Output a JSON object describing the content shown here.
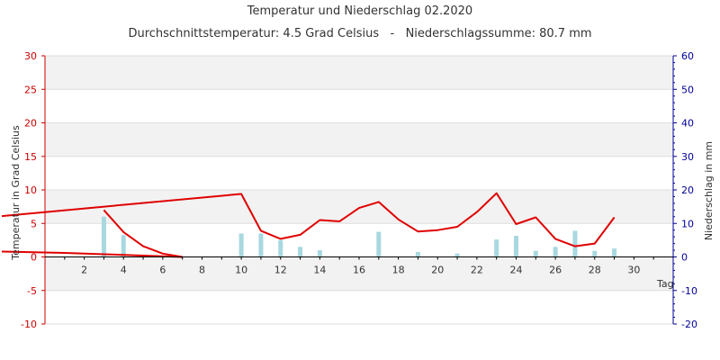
{
  "chart_data": {
    "type": "line",
    "title": "Temperatur und Niederschlag 02.2020",
    "subtitle": "Durchschnittstemperatur: 4.5 Grad Celsius   -   Niederschlagssumme: 80.7 mm",
    "ylabel_left": "Temperatur in Grad Celsius",
    "ylabel_right": "Niederschlag in mm",
    "xlabel": "Tag",
    "xlim": [
      0,
      32
    ],
    "ylim_left": [
      -10,
      30
    ],
    "ylim_right": [
      -20,
      60
    ],
    "x_ticks": [
      2,
      4,
      6,
      8,
      10,
      12,
      14,
      16,
      18,
      20,
      22,
      24,
      26,
      28,
      30
    ],
    "y_ticks_left": [
      -10,
      -5,
      0,
      5,
      10,
      15,
      20,
      25,
      30
    ],
    "y_ticks_right": [
      -20,
      -10,
      0,
      10,
      20,
      30,
      40,
      50,
      60
    ],
    "grid": true,
    "series": [
      {
        "kind": "line",
        "axis": "left",
        "color": "#e00000",
        "values": [
          {
            "x": -2.2,
            "y": 6.1
          },
          {
            "x": 10,
            "y": 9.4
          },
          {
            "x": 11,
            "y": 3.9
          },
          {
            "x": 12,
            "y": 2.7
          },
          {
            "x": 13,
            "y": 3.3
          },
          {
            "x": 14,
            "y": 5.5
          },
          {
            "x": 15,
            "y": 5.3
          },
          {
            "x": 16,
            "y": 7.3
          },
          {
            "x": 17,
            "y": 8.2
          },
          {
            "x": 18,
            "y": 5.6
          },
          {
            "x": 19,
            "y": 3.8
          },
          {
            "x": 20,
            "y": 4.0
          },
          {
            "x": 21,
            "y": 4.5
          },
          {
            "x": 22,
            "y": 6.7
          },
          {
            "x": 23,
            "y": 9.5
          },
          {
            "x": 24,
            "y": 4.9
          },
          {
            "x": 25,
            "y": 5.9
          },
          {
            "x": 26,
            "y": 2.7
          },
          {
            "x": 27,
            "y": 1.6
          },
          {
            "x": 28,
            "y": 2.0
          },
          {
            "x": 29,
            "y": 5.9
          }
        ]
      },
      {
        "kind": "line",
        "axis": "left",
        "color": "#e00000",
        "values": [
          {
            "x": 3,
            "y": 7.0
          },
          {
            "x": 4,
            "y": 3.7
          },
          {
            "x": 5,
            "y": 1.6
          },
          {
            "x": 6,
            "y": 0.5
          },
          {
            "x": 7,
            "y": 0.0
          }
        ]
      },
      {
        "kind": "line",
        "axis": "left",
        "color": "#e00000",
        "values": [
          {
            "x": -2.2,
            "y": 0.8
          },
          {
            "x": 1,
            "y": 0.6
          },
          {
            "x": 3,
            "y": 0.4
          },
          {
            "x": 5,
            "y": 0.2
          },
          {
            "x": 7,
            "y": 0.0
          }
        ]
      },
      {
        "kind": "bar",
        "axis": "right",
        "color": "#a8d8e0",
        "values": [
          {
            "x": 3,
            "y": 12.0
          },
          {
            "x": 4,
            "y": 6.5
          },
          {
            "x": 10,
            "y": 7.0
          },
          {
            "x": 11,
            "y": 7.0
          },
          {
            "x": 12,
            "y": 5.0
          },
          {
            "x": 13,
            "y": 3.0
          },
          {
            "x": 14,
            "y": 2.0
          },
          {
            "x": 17,
            "y": 7.5
          },
          {
            "x": 19,
            "y": 1.5
          },
          {
            "x": 21,
            "y": 1.0
          },
          {
            "x": 23,
            "y": 5.2
          },
          {
            "x": 24,
            "y": 6.3
          },
          {
            "x": 25,
            "y": 1.8
          },
          {
            "x": 26,
            "y": 3.0
          },
          {
            "x": 27,
            "y": 7.8
          },
          {
            "x": 28,
            "y": 1.8
          },
          {
            "x": 29,
            "y": 2.5
          }
        ]
      }
    ]
  }
}
